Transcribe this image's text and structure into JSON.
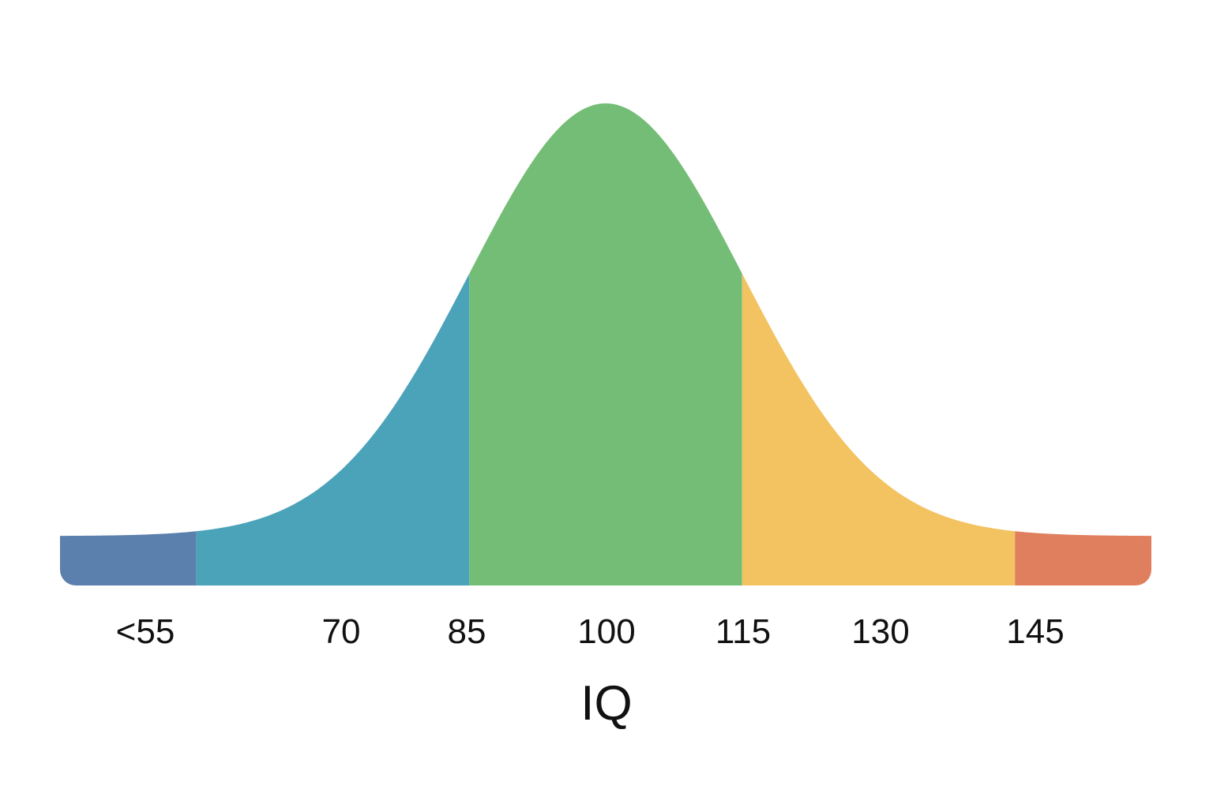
{
  "chart_data": {
    "type": "area",
    "title": "",
    "xlabel": "IQ",
    "ylabel": "",
    "xlim": [
      40,
      160
    ],
    "ticks": [
      {
        "label": "<55",
        "value": 47
      },
      {
        "label": "70",
        "value": 70
      },
      {
        "label": "85",
        "value": 85
      },
      {
        "label": "100",
        "value": 100
      },
      {
        "label": "115",
        "value": 115
      },
      {
        "label": "130",
        "value": 130
      },
      {
        "label": "145",
        "value": 145
      }
    ],
    "distribution": {
      "mean": 100,
      "sd": 15
    },
    "bands": [
      {
        "from": 40,
        "to": 55,
        "color": "#5b80ad"
      },
      {
        "from": 55,
        "to": 85,
        "color": "#4ba3b9"
      },
      {
        "from": 85,
        "to": 115,
        "color": "#74bd76"
      },
      {
        "from": 115,
        "to": 145,
        "color": "#f3c362"
      },
      {
        "from": 145,
        "to": 160,
        "color": "#e07f5d"
      }
    ],
    "grid": false,
    "legend": "none"
  }
}
